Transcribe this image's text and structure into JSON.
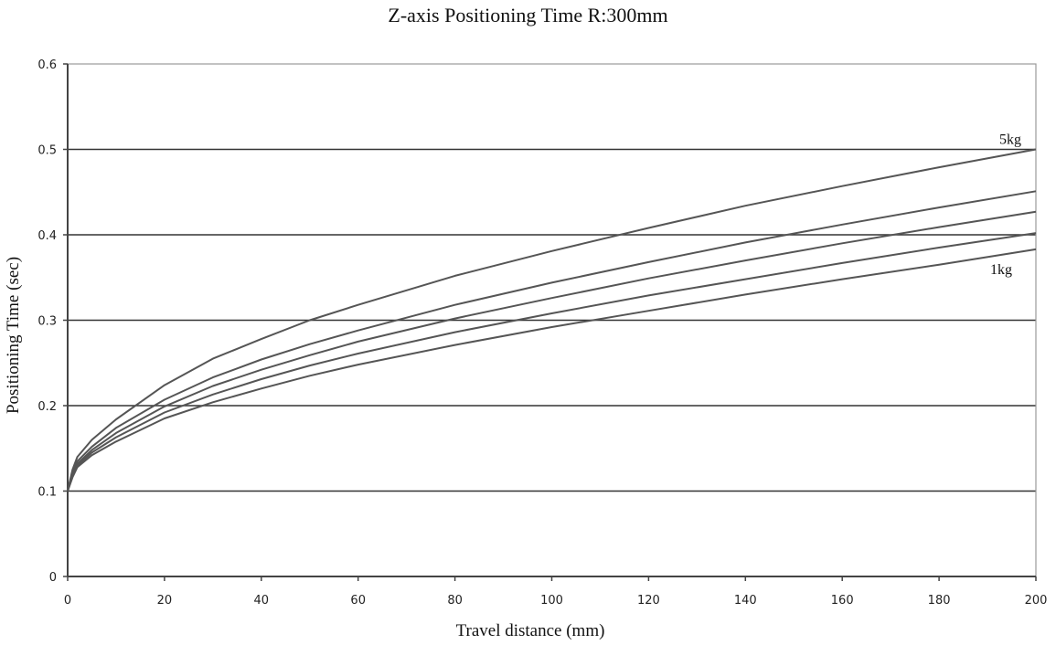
{
  "chart_data": {
    "type": "line",
    "title": "Z-axis Positioning Time R:300mm",
    "xlabel": "Travel distance (mm)",
    "ylabel": "Positioning Time (sec)",
    "xlim": [
      0,
      200
    ],
    "ylim": [
      0,
      0.6
    ],
    "xticks": [
      "0",
      "20",
      "40",
      "60",
      "80",
      "100",
      "120",
      "140",
      "160",
      "180",
      "200"
    ],
    "yticks": [
      "0",
      "0.1",
      "0.2",
      "0.3",
      "0.4",
      "0.5",
      "0.6"
    ],
    "grid": "horizontal",
    "x": [
      0,
      1,
      2,
      5,
      10,
      20,
      30,
      40,
      50,
      60,
      80,
      100,
      120,
      140,
      160,
      180,
      200
    ],
    "series": [
      {
        "name": "5kg",
        "values": [
          0.1,
          0.125,
          0.14,
          0.16,
          0.184,
          0.224,
          0.255,
          0.278,
          0.3,
          0.318,
          0.352,
          0.381,
          0.408,
          0.434,
          0.457,
          0.479,
          0.5
        ]
      },
      {
        "name": "",
        "values": [
          0.1,
          0.122,
          0.135,
          0.152,
          0.174,
          0.207,
          0.233,
          0.254,
          0.272,
          0.288,
          0.318,
          0.344,
          0.368,
          0.391,
          0.412,
          0.432,
          0.451
        ]
      },
      {
        "name": "",
        "values": [
          0.1,
          0.12,
          0.132,
          0.148,
          0.168,
          0.199,
          0.223,
          0.242,
          0.259,
          0.275,
          0.302,
          0.326,
          0.349,
          0.37,
          0.39,
          0.409,
          0.427
        ]
      },
      {
        "name": "",
        "values": [
          0.1,
          0.118,
          0.13,
          0.145,
          0.163,
          0.192,
          0.213,
          0.231,
          0.247,
          0.261,
          0.286,
          0.308,
          0.329,
          0.348,
          0.367,
          0.385,
          0.402
        ]
      },
      {
        "name": "1kg",
        "values": [
          0.1,
          0.116,
          0.128,
          0.142,
          0.158,
          0.185,
          0.204,
          0.22,
          0.235,
          0.248,
          0.271,
          0.292,
          0.311,
          0.33,
          0.348,
          0.365,
          0.383
        ]
      }
    ],
    "legend": "inline-right"
  }
}
